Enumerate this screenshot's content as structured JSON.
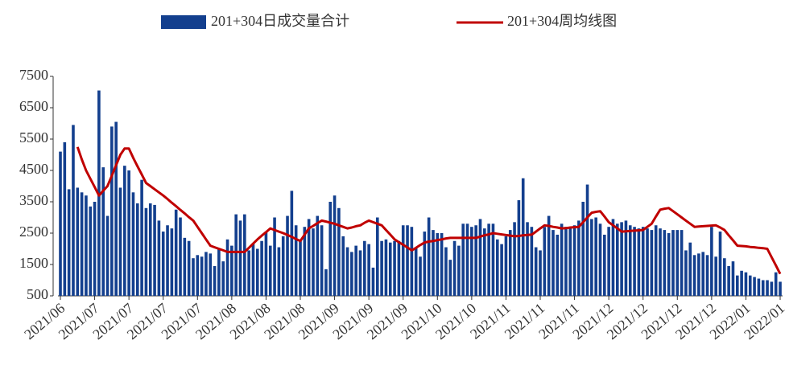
{
  "chart_data": {
    "type": "bar_line",
    "categories": [
      "2021/06",
      null,
      null,
      null,
      null,
      null,
      null,
      null,
      "2021/07",
      null,
      null,
      null,
      null,
      null,
      null,
      null,
      "2021/07",
      null,
      null,
      null,
      null,
      null,
      null,
      null,
      "2021/07",
      null,
      null,
      null,
      null,
      null,
      null,
      null,
      "2021/07",
      null,
      null,
      null,
      null,
      null,
      null,
      null,
      "2021/08",
      null,
      null,
      null,
      null,
      null,
      null,
      null,
      "2021/08",
      null,
      null,
      null,
      null,
      null,
      null,
      null,
      "2021/08",
      null,
      null,
      null,
      null,
      null,
      null,
      null,
      "2021/09",
      null,
      null,
      null,
      null,
      null,
      null,
      null,
      "2021/09",
      null,
      null,
      null,
      null,
      null,
      null,
      null,
      "2021/09",
      null,
      null,
      null,
      null,
      null,
      null,
      null,
      "2021/10",
      null,
      null,
      null,
      null,
      null,
      null,
      null,
      "2021/10",
      null,
      null,
      null,
      null,
      null,
      null,
      null,
      "2021/11",
      null,
      null,
      null,
      null,
      null,
      null,
      null,
      "2021/11",
      null,
      null,
      null,
      null,
      null,
      null,
      null,
      "2021/11",
      null,
      null,
      null,
      null,
      null,
      null,
      null,
      "2021/12",
      null,
      null,
      null,
      null,
      null,
      null,
      null,
      "2021/12",
      null,
      null,
      null,
      null,
      null,
      null,
      null,
      "2021/12",
      null,
      null,
      null,
      null,
      null,
      null,
      null,
      "2021/12",
      null,
      null,
      null,
      null,
      null,
      null,
      null,
      "2022/01",
      null,
      null,
      null,
      null,
      null,
      null,
      null,
      "2022/01"
    ],
    "series": [
      {
        "name": "201+304日成交量合计",
        "type": "bar",
        "color": "#133f8e",
        "values": [
          5100,
          5400,
          3900,
          5950,
          3950,
          3800,
          3700,
          3350,
          3500,
          7050,
          4600,
          3050,
          5900,
          6050,
          3950,
          4650,
          4500,
          3800,
          3450,
          4200,
          3300,
          3450,
          3400,
          2900,
          2550,
          2750,
          2650,
          3250,
          3000,
          2350,
          2250,
          1700,
          1800,
          1750,
          1900,
          1850,
          1450,
          2000,
          1600,
          2300,
          2100,
          3100,
          2900,
          3100,
          1950,
          2150,
          2000,
          2250,
          2550,
          2100,
          3000,
          2050,
          2400,
          3050,
          3850,
          2750,
          2250,
          2700,
          2950,
          2650,
          3050,
          2750,
          1350,
          3500,
          3700,
          3300,
          2400,
          2050,
          1900,
          2100,
          1950,
          2250,
          2150,
          1400,
          3000,
          2250,
          2300,
          2200,
          2250,
          2250,
          2750,
          2750,
          2700,
          2050,
          1750,
          2550,
          3000,
          2600,
          2500,
          2500,
          2050,
          1650,
          2250,
          2100,
          2800,
          2800,
          2700,
          2750,
          2950,
          2650,
          2800,
          2800,
          2300,
          2150,
          2400,
          2600,
          2850,
          3550,
          4250,
          2850,
          2700,
          2050,
          1950,
          2700,
          3050,
          2600,
          2450,
          2800,
          2700,
          2700,
          2750,
          2900,
          3500,
          4050,
          2950,
          3000,
          2800,
          2450,
          2700,
          2950,
          2800,
          2850,
          2900,
          2750,
          2700,
          2650,
          2700,
          2650,
          2600,
          2750,
          2650,
          2600,
          2500,
          2600,
          2600,
          2600,
          1950,
          2200,
          1800,
          1850,
          1900,
          1800,
          2700,
          1750,
          2550,
          1700,
          1450,
          1600,
          1150,
          1300,
          1250,
          1150,
          1100,
          1050,
          1000,
          1000,
          950,
          1250,
          950
        ]
      },
      {
        "name": "201+304周均线图",
        "type": "line",
        "color": "#c00000",
        "values": [
          null,
          null,
          null,
          null,
          5250,
          4850,
          4500,
          4230,
          3970,
          3700,
          3850,
          4000,
          4330,
          4670,
          5000,
          5200,
          5200,
          4900,
          4630,
          4370,
          4100,
          4000,
          3900,
          3800,
          3700,
          3590,
          3470,
          3360,
          3240,
          3130,
          3010,
          2900,
          2700,
          2500,
          2300,
          2100,
          2050,
          2000,
          1950,
          1900,
          1900,
          1900,
          1900,
          1900,
          2030,
          2170,
          2300,
          2420,
          2530,
          2650,
          2600,
          2550,
          2500,
          2440,
          2380,
          2310,
          2250,
          2450,
          2650,
          2730,
          2820,
          2900,
          2870,
          2830,
          2800,
          2750,
          2700,
          2650,
          2680,
          2720,
          2750,
          2830,
          2900,
          2850,
          2800,
          2750,
          2600,
          2450,
          2300,
          2210,
          2130,
          2040,
          1950,
          2030,
          2120,
          2200,
          2230,
          2250,
          2280,
          2300,
          2330,
          2350,
          2350,
          2350,
          2350,
          2350,
          2350,
          2350,
          2390,
          2430,
          2460,
          2500,
          2480,
          2460,
          2440,
          2420,
          2400,
          2410,
          2430,
          2440,
          2450,
          2550,
          2650,
          2750,
          2730,
          2700,
          2680,
          2650,
          2660,
          2680,
          2690,
          2700,
          2850,
          3000,
          3150,
          3180,
          3200,
          3030,
          2850,
          2750,
          2650,
          2550,
          2560,
          2570,
          2580,
          2590,
          2600,
          2700,
          2800,
          3030,
          3250,
          3280,
          3300,
          3200,
          3100,
          3000,
          2900,
          2800,
          2700,
          2710,
          2720,
          2730,
          2740,
          2750,
          2680,
          2600,
          2430,
          2270,
          2100,
          2090,
          2080,
          2060,
          2050,
          2030,
          2020,
          2000,
          1730,
          1470,
          1200
        ]
      }
    ],
    "ylim": [
      500,
      7500
    ],
    "yticks": [
      500,
      1500,
      2500,
      3500,
      4500,
      5500,
      6500,
      7500
    ],
    "grid": false,
    "legend": "top"
  }
}
